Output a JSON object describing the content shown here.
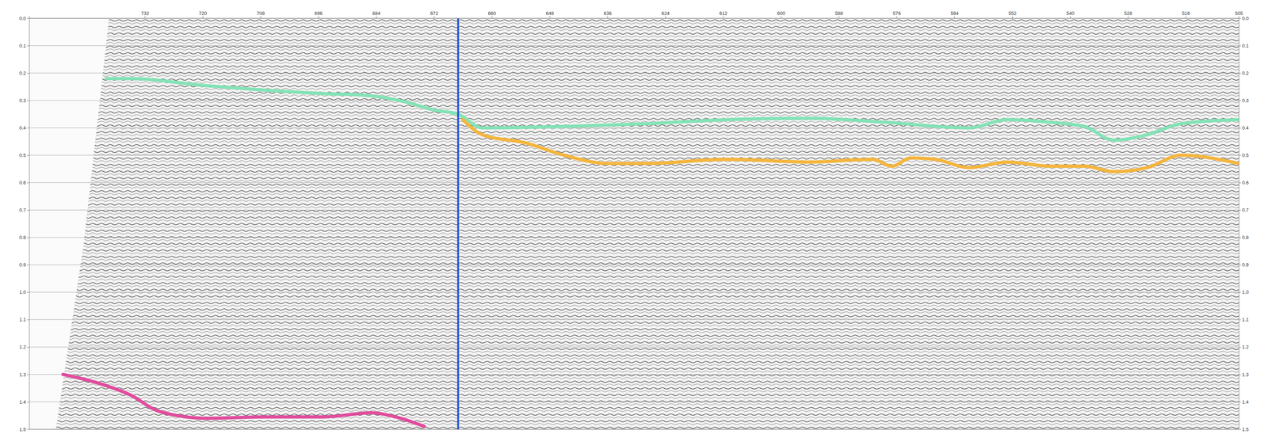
{
  "chart_data": {
    "type": "line",
    "xlim": [
      756,
      505
    ],
    "xticks": [
      732,
      720,
      708,
      696,
      684,
      672,
      660,
      648,
      636,
      624,
      612,
      600,
      588,
      576,
      564,
      552,
      540,
      528,
      516,
      505
    ],
    "ylim": [
      0,
      1.5
    ],
    "yticks": [
      {
        "value": 0,
        "label": "0.0"
      },
      {
        "value": 0.1,
        "label": "0.1"
      },
      {
        "value": 0.2,
        "label": "0.2"
      },
      {
        "value": 0.3,
        "label": "0.3"
      },
      {
        "value": 0.4,
        "label": "0.4"
      },
      {
        "value": 0.5,
        "label": "0.5"
      },
      {
        "value": 0.6,
        "label": "0.6"
      },
      {
        "value": 0.7,
        "label": "0.7"
      },
      {
        "value": 0.8,
        "label": "0.8"
      },
      {
        "value": 0.9,
        "label": "0.9"
      },
      {
        "value": 1,
        "label": "1.0"
      },
      {
        "value": 1.1,
        "label": "1.1"
      },
      {
        "value": 1.2,
        "label": "1.2"
      },
      {
        "value": 1.3,
        "label": "1.3"
      },
      {
        "value": 1.4,
        "label": "1.4"
      },
      {
        "value": 1.5,
        "label": "1.5"
      }
    ],
    "grid": true,
    "series": [
      {
        "color": "#7fe3b4",
        "x": [
          740,
          735,
          720,
          709,
          695,
          687,
          678,
          672,
          667,
          662,
          645,
          628,
          611,
          594,
          578,
          561,
          553,
          544,
          537,
          531,
          524,
          517,
          505
        ],
        "values": [
          0.22,
          0.22,
          0.245,
          0.26,
          0.275,
          0.28,
          0.305,
          0.335,
          0.35,
          0.4,
          0.395,
          0.385,
          0.37,
          0.365,
          0.38,
          0.4,
          0.37,
          0.38,
          0.395,
          0.445,
          0.425,
          0.385,
          0.37
        ]
      },
      {
        "color": "#f5b335",
        "x": [
          666,
          662,
          653,
          645,
          636,
          628,
          611,
          594,
          581,
          577,
          573,
          568,
          561,
          553,
          544,
          537,
          531,
          524,
          517,
          505
        ],
        "values": [
          0.37,
          0.425,
          0.455,
          0.5,
          0.53,
          0.53,
          0.515,
          0.525,
          0.515,
          0.54,
          0.51,
          0.515,
          0.545,
          0.525,
          0.54,
          0.54,
          0.56,
          0.545,
          0.5,
          0.53
        ]
      },
      {
        "color": "#e0449a",
        "x": [
          749,
          742,
          735,
          729,
          719,
          707,
          695,
          685,
          680,
          674
        ],
        "values": [
          1.3,
          1.33,
          1.375,
          1.435,
          1.46,
          1.455,
          1.455,
          1.44,
          1.455,
          1.49
        ]
      },
      {
        "color": "#1f4fd8",
        "x": [
          667,
          667
        ],
        "values": [
          0,
          1.5
        ]
      }
    ]
  }
}
